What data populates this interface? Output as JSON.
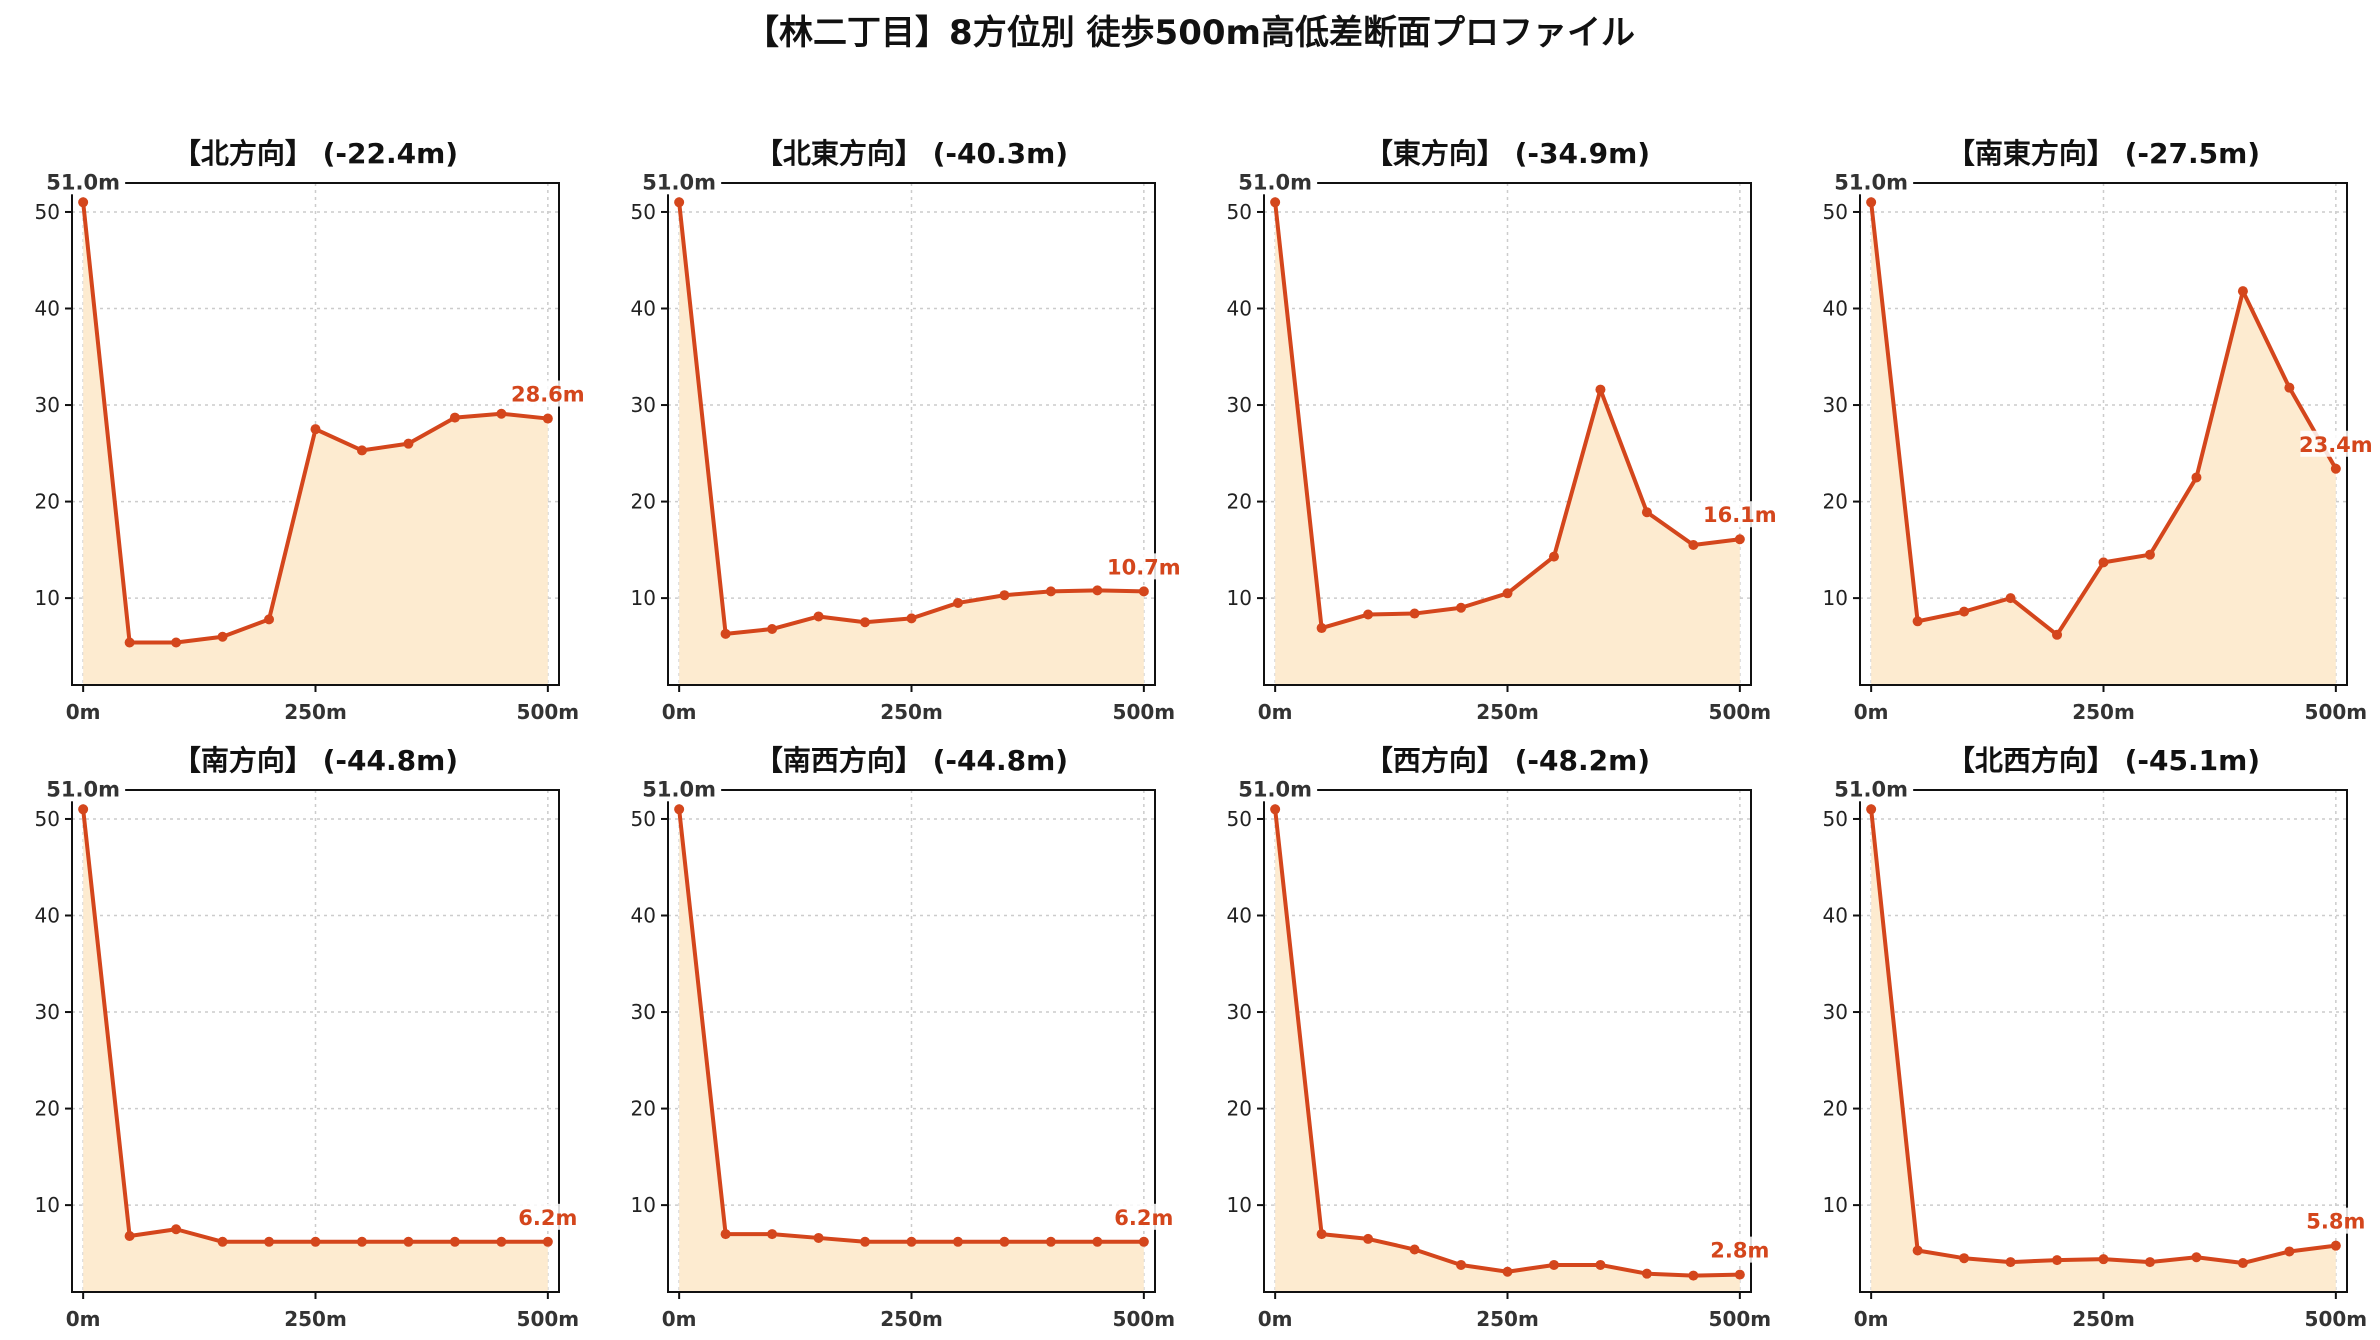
{
  "title": "【林二丁目】8方位別 徒歩500m高低差断面プロファイル",
  "colors": {
    "line": "#d4461c",
    "fill": "#fdebd0",
    "end_label": "#d4461c"
  },
  "chart_data": [
    {
      "type": "area",
      "title": "【北方向】 (-22.4m)",
      "x": [
        0,
        50,
        100,
        150,
        200,
        250,
        300,
        350,
        400,
        450,
        500
      ],
      "y": [
        51.0,
        5.4,
        5.4,
        6.0,
        7.8,
        27.5,
        25.3,
        26.0,
        28.7,
        29.1,
        28.6
      ],
      "xticks": [
        "0m",
        "250m",
        "500m"
      ],
      "yticks": [
        10,
        20,
        30,
        40,
        50
      ],
      "ylim": [
        1,
        53
      ],
      "xlim": [
        -12,
        512
      ],
      "start_label": "51.0m",
      "end_label": "28.6m",
      "grid": true
    },
    {
      "type": "area",
      "title": "【北東方向】 (-40.3m)",
      "x": [
        0,
        50,
        100,
        150,
        200,
        250,
        300,
        350,
        400,
        450,
        500
      ],
      "y": [
        51.0,
        6.3,
        6.8,
        8.1,
        7.5,
        7.9,
        9.5,
        10.3,
        10.7,
        10.8,
        10.7
      ],
      "xticks": [
        "0m",
        "250m",
        "500m"
      ],
      "yticks": [
        10,
        20,
        30,
        40,
        50
      ],
      "ylim": [
        1,
        53
      ],
      "xlim": [
        -12,
        512
      ],
      "start_label": "51.0m",
      "end_label": "10.7m",
      "grid": true
    },
    {
      "type": "area",
      "title": "【東方向】 (-34.9m)",
      "x": [
        0,
        50,
        100,
        150,
        200,
        250,
        300,
        350,
        400,
        450,
        500
      ],
      "y": [
        51.0,
        6.9,
        8.3,
        8.4,
        9.0,
        10.5,
        14.3,
        31.6,
        18.9,
        15.5,
        16.1
      ],
      "xticks": [
        "0m",
        "250m",
        "500m"
      ],
      "yticks": [
        10,
        20,
        30,
        40,
        50
      ],
      "ylim": [
        1,
        53
      ],
      "xlim": [
        -12,
        512
      ],
      "start_label": "51.0m",
      "end_label": "16.1m",
      "grid": true
    },
    {
      "type": "area",
      "title": "【南東方向】 (-27.5m)",
      "x": [
        0,
        50,
        100,
        150,
        200,
        250,
        300,
        350,
        400,
        450,
        500
      ],
      "y": [
        51.0,
        7.6,
        8.6,
        10.0,
        6.2,
        13.7,
        14.5,
        22.5,
        41.8,
        31.8,
        23.4
      ],
      "xticks": [
        "0m",
        "250m",
        "500m"
      ],
      "yticks": [
        10,
        20,
        30,
        40,
        50
      ],
      "ylim": [
        1,
        53
      ],
      "xlim": [
        -12,
        512
      ],
      "start_label": "51.0m",
      "end_label": "23.4m",
      "grid": true
    },
    {
      "type": "area",
      "title": "【南方向】 (-44.8m)",
      "x": [
        0,
        50,
        100,
        150,
        200,
        250,
        300,
        350,
        400,
        450,
        500
      ],
      "y": [
        51.0,
        6.8,
        7.5,
        6.2,
        6.2,
        6.2,
        6.2,
        6.2,
        6.2,
        6.2,
        6.2
      ],
      "xticks": [
        "0m",
        "250m",
        "500m"
      ],
      "yticks": [
        10,
        20,
        30,
        40,
        50
      ],
      "ylim": [
        1,
        53
      ],
      "xlim": [
        -12,
        512
      ],
      "start_label": "51.0m",
      "end_label": "6.2m",
      "grid": true
    },
    {
      "type": "area",
      "title": "【南西方向】 (-44.8m)",
      "x": [
        0,
        50,
        100,
        150,
        200,
        250,
        300,
        350,
        400,
        450,
        500
      ],
      "y": [
        51.0,
        7.0,
        7.0,
        6.6,
        6.2,
        6.2,
        6.2,
        6.2,
        6.2,
        6.2,
        6.2
      ],
      "xticks": [
        "0m",
        "250m",
        "500m"
      ],
      "yticks": [
        10,
        20,
        30,
        40,
        50
      ],
      "ylim": [
        1,
        53
      ],
      "xlim": [
        -12,
        512
      ],
      "start_label": "51.0m",
      "end_label": "6.2m",
      "grid": true
    },
    {
      "type": "area",
      "title": "【西方向】 (-48.2m)",
      "x": [
        0,
        50,
        100,
        150,
        200,
        250,
        300,
        350,
        400,
        450,
        500
      ],
      "y": [
        51.0,
        7.0,
        6.5,
        5.4,
        3.8,
        3.1,
        3.8,
        3.8,
        2.9,
        2.7,
        2.8
      ],
      "xticks": [
        "0m",
        "250m",
        "500m"
      ],
      "yticks": [
        10,
        20,
        30,
        40,
        50
      ],
      "ylim": [
        1,
        53
      ],
      "xlim": [
        -12,
        512
      ],
      "start_label": "51.0m",
      "end_label": "2.8m",
      "grid": true
    },
    {
      "type": "area",
      "title": "【北西方向】 (-45.1m)",
      "x": [
        0,
        50,
        100,
        150,
        200,
        250,
        300,
        350,
        400,
        450,
        500
      ],
      "y": [
        51.0,
        5.3,
        4.5,
        4.1,
        4.3,
        4.4,
        4.1,
        4.6,
        4.0,
        5.2,
        5.8
      ],
      "xticks": [
        "0m",
        "250m",
        "500m"
      ],
      "yticks": [
        10,
        20,
        30,
        40,
        50
      ],
      "ylim": [
        1,
        53
      ],
      "xlim": [
        -12,
        512
      ],
      "start_label": "51.0m",
      "end_label": "5.8m",
      "grid": true
    }
  ]
}
